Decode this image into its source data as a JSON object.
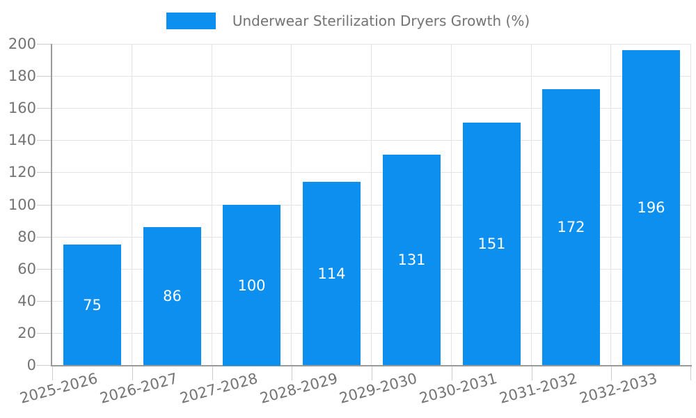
{
  "chart_data": {
    "type": "bar",
    "title": "Underwear Sterilization Dryers Growth (%)",
    "legend_entries": [
      "Underwear Sterilization Dryers Growth (%)"
    ],
    "legend_position": "top-center",
    "categories": [
      "2025-2026",
      "2026-2027",
      "2027-2028",
      "2028-2029",
      "2029-2030",
      "2030-2031",
      "2031-2032",
      "2032-2033"
    ],
    "values": [
      75,
      86,
      100,
      114,
      131,
      151,
      172,
      196
    ],
    "xlabel": "",
    "ylabel": "",
    "ylim": [
      0,
      200
    ],
    "ytick_step": 20,
    "ytick_labels": [
      "0",
      "20",
      "40",
      "60",
      "80",
      "100",
      "120",
      "140",
      "160",
      "180",
      "200"
    ],
    "grid": true,
    "bar_label_position": "center",
    "x_label_rotation_deg": -15
  },
  "colors": {
    "bar": "#0d8ff0",
    "axis_line": "#9a9a9a",
    "grid_line": "#e3e3e3",
    "tick_mark": "#cccccc",
    "text": "#737373",
    "value_label": "#ffffff",
    "background": "#ffffff"
  }
}
